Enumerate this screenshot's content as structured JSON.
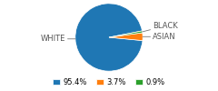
{
  "chart_data": {
    "type": "pie",
    "categories": [
      "WHITE",
      "ASIAN",
      "BLACK"
    ],
    "values": [
      95.4,
      3.7,
      0.9
    ],
    "value_labels": [
      "95.4%",
      "3.7%",
      "0.9%"
    ],
    "legend": "lower center"
  }
}
